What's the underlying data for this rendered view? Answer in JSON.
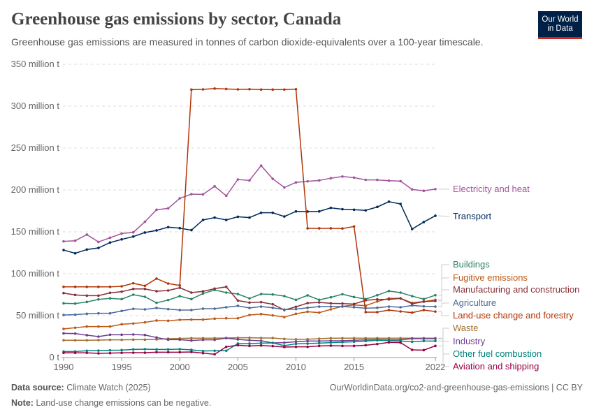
{
  "header": {
    "title": "Greenhouse gas emissions by sector, Canada",
    "subtitle": "Greenhouse gas emissions are measured in tonnes of carbon dioxide-equivalents over a 100-year timescale.",
    "logo_line1": "Our World",
    "logo_line2": "in Data"
  },
  "footer": {
    "source_label": "Data source:",
    "source": "Climate Watch (2025)",
    "url": "OurWorldinData.org/co2-and-greenhouse-gas-emissions | CC BY",
    "note_label": "Note:",
    "note": "Land-use change emissions can be negative."
  },
  "chart_data": {
    "type": "line",
    "title": "Greenhouse gas emissions by sector, Canada",
    "xlabel": "",
    "ylabel": "",
    "xlim": [
      1990,
      2022
    ],
    "ylim": [
      0,
      350
    ],
    "grid": true,
    "legend": "right (line-end labels)",
    "x_ticks": [
      "1990",
      "1995",
      "2000",
      "2005",
      "2010",
      "2015",
      "2022"
    ],
    "y_ticks": [
      {
        "v": 0,
        "label": "0 t"
      },
      {
        "v": 50,
        "label": "50 million t"
      },
      {
        "v": 100,
        "label": "100 million t"
      },
      {
        "v": 150,
        "label": "150 million t"
      },
      {
        "v": 200,
        "label": "200 million t"
      },
      {
        "v": 250,
        "label": "250 million t"
      },
      {
        "v": 300,
        "label": "300 million t"
      },
      {
        "v": 350,
        "label": "350 million t"
      }
    ],
    "x": [
      1990,
      1991,
      1992,
      1993,
      1994,
      1995,
      1996,
      1997,
      1998,
      1999,
      2000,
      2001,
      2002,
      2003,
      2004,
      2005,
      2006,
      2007,
      2008,
      2009,
      2010,
      2011,
      2012,
      2013,
      2014,
      2015,
      2016,
      2017,
      2018,
      2019,
      2020,
      2021,
      2022
    ],
    "series": [
      {
        "name": "Electricity and heat",
        "color": "#a2559c",
        "values": [
          138.6,
          139.4,
          146.7,
          138,
          143,
          148,
          149.4,
          162,
          176.4,
          178,
          190,
          195,
          194.7,
          204.4,
          193,
          212.5,
          211.4,
          229,
          213.3,
          203,
          209,
          210.3,
          211.4,
          214,
          216,
          214.7,
          212,
          212,
          211,
          210.5,
          200.6,
          199,
          201
        ]
      },
      {
        "name": "Transport",
        "color": "#00295b",
        "values": [
          128.3,
          124.4,
          128.9,
          130.8,
          137.2,
          141,
          144.4,
          149.2,
          151.7,
          155.6,
          154.4,
          152,
          164.2,
          167,
          164.2,
          168,
          167,
          172.8,
          172.8,
          168.3,
          174.4,
          174.2,
          174.4,
          178.6,
          177,
          176.4,
          175.6,
          179.7,
          186,
          183.3,
          153.3,
          161.7,
          169.2
        ]
      },
      {
        "name": "Buildings",
        "color": "#2c8465",
        "values": [
          64.7,
          64.4,
          66.4,
          69.4,
          70.6,
          69.7,
          75,
          72.5,
          65.3,
          68.6,
          73.3,
          69.7,
          76.4,
          80.6,
          77.5,
          75.8,
          70.6,
          75.8,
          75.3,
          73.3,
          68.9,
          74.2,
          68.9,
          71.9,
          75.6,
          72.2,
          69.7,
          74.4,
          79.4,
          77.5,
          73.3,
          69.7,
          74.4
        ]
      },
      {
        "name": "Fugitive emissions",
        "color": "#be5915",
        "values": [
          34.2,
          35.6,
          37,
          37,
          37,
          39.7,
          40.6,
          42,
          44.2,
          43.9,
          45,
          45.3,
          45.3,
          46.4,
          46.9,
          46.9,
          50.8,
          51.9,
          50.3,
          48.3,
          52.2,
          54.7,
          53.6,
          57.5,
          61.1,
          62.8,
          61.9,
          66.9,
          70.6,
          70.6,
          65.3,
          66.9,
          68.9
        ]
      },
      {
        "name": "Manufacturing and construction",
        "color": "#883039",
        "values": [
          76.9,
          74.7,
          73.9,
          73.9,
          77.2,
          78.6,
          81.9,
          81.9,
          79.2,
          80,
          83.3,
          77.5,
          79,
          82.2,
          84.4,
          68,
          65.6,
          66.1,
          63.6,
          56.7,
          60.6,
          65,
          65.8,
          64.7,
          64.4,
          63.9,
          68.3,
          69.4,
          69.4,
          70.6,
          64.2,
          66.7,
          67.5
        ]
      },
      {
        "name": "Agriculture",
        "color": "#4c6a9c",
        "values": [
          50.8,
          51.1,
          52.2,
          52.8,
          52.8,
          55.6,
          58.1,
          57.5,
          59.2,
          57.8,
          56.7,
          56.7,
          58.3,
          58.3,
          60,
          61.7,
          59.2,
          60.8,
          59.4,
          57.2,
          57.8,
          59.4,
          60.8,
          60.8,
          60.8,
          60,
          58.9,
          59.4,
          60.8,
          60,
          62.2,
          61.1,
          60.8
        ]
      },
      {
        "name": "Land-use change and forestry",
        "color": "#b13507",
        "values": [
          84.4,
          84.4,
          84.4,
          84.4,
          84.4,
          85,
          88.6,
          85.6,
          94.2,
          88.3,
          86.1,
          319.7,
          320,
          321,
          320.5,
          320,
          320.2,
          319.8,
          319.7,
          319.8,
          320.2,
          154.2,
          154.2,
          154.2,
          154,
          156.4,
          54.2,
          54.2,
          56.7,
          55,
          53.6,
          56.7,
          54.9
        ]
      },
      {
        "name": "Waste",
        "color": "#a2702f",
        "values": [
          20.6,
          20.6,
          20.6,
          20.8,
          21.1,
          21.1,
          21.4,
          21.4,
          21.7,
          22.5,
          22.8,
          23.1,
          23.1,
          23.1,
          23.3,
          23.6,
          23.6,
          23.3,
          23.3,
          22.2,
          21.7,
          21.9,
          22.5,
          23.1,
          23.1,
          23.1,
          23.1,
          23.1,
          23.1,
          23.1,
          23.1,
          23.1,
          23.1
        ]
      },
      {
        "name": "Industry",
        "color": "#6d3e91",
        "values": [
          28.9,
          28.6,
          26.7,
          25,
          27.2,
          27.2,
          27.5,
          26.9,
          23.9,
          21.4,
          21.4,
          20.3,
          21.1,
          21.1,
          23.1,
          21.7,
          20.6,
          20,
          17.5,
          17.8,
          18.9,
          19.7,
          19.7,
          20,
          20,
          20.6,
          21.1,
          21.4,
          21.1,
          21.1,
          22.5,
          22.5,
          22.5
        ]
      },
      {
        "name": "Other fuel combustion",
        "color": "#00847e",
        "values": [
          7.2,
          7.2,
          8.1,
          8.3,
          8.6,
          8.9,
          9.7,
          10,
          9.7,
          9.7,
          10,
          9.2,
          7.8,
          8.1,
          8.1,
          16.7,
          16.7,
          17.2,
          17.5,
          14.2,
          16.4,
          16.7,
          17.2,
          17.8,
          18.3,
          18.9,
          19.7,
          20.6,
          20.3,
          19.7,
          18.9,
          19.7,
          19.7
        ]
      },
      {
        "name": "Aviation and shipping",
        "color": "#970046",
        "values": [
          5.6,
          5.6,
          5.6,
          5,
          5.3,
          5.6,
          5.8,
          5.8,
          6.4,
          6.4,
          6.4,
          6.7,
          5.3,
          3.9,
          12.8,
          14.7,
          13.9,
          14.4,
          13.6,
          12.5,
          12.8,
          12.8,
          13.9,
          14.2,
          13.9,
          13.9,
          14.7,
          16.1,
          18.1,
          17.8,
          9.2,
          8.9,
          13.9
        ]
      }
    ]
  }
}
